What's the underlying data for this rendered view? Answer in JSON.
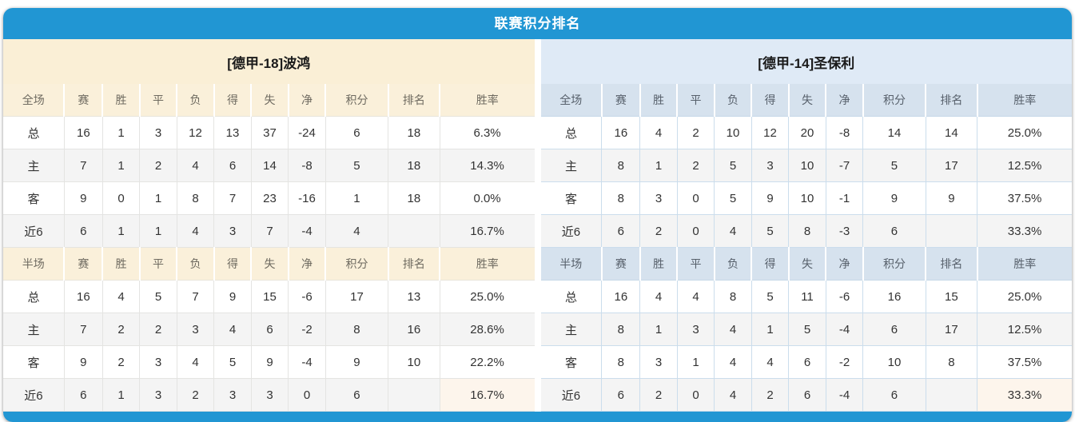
{
  "title": "联赛积分排名",
  "columns": [
    "赛",
    "胜",
    "平",
    "负",
    "得",
    "失",
    "净",
    "积分",
    "排名",
    "胜率"
  ],
  "colors": {
    "accent_blue": "#2196d3",
    "cream_header": "#faf0da",
    "blue_header": "#d6e2ee",
    "points_red": "#ff3300",
    "rank_blue": "#3385db",
    "rate_red": "#ff3000",
    "home_label": "#f25b66",
    "away_label": "#6a66e0"
  },
  "tables": [
    {
      "theme": "cream",
      "team": "[德甲-18]波鸿",
      "sections": [
        {
          "scope": "全场",
          "rows": [
            {
              "label": "总",
              "values": [
                "16",
                "1",
                "3",
                "12",
                "13",
                "37",
                "-24"
              ],
              "points": "6",
              "rank": "18",
              "rate": "6.3%"
            },
            {
              "label": "主",
              "values": [
                "7",
                "1",
                "2",
                "4",
                "6",
                "14",
                "-8"
              ],
              "points": "5",
              "rank": "18",
              "rate": "14.3%"
            },
            {
              "label": "客",
              "values": [
                "9",
                "0",
                "1",
                "8",
                "7",
                "23",
                "-16"
              ],
              "points": "1",
              "rank": "18",
              "rate": "0.0%"
            },
            {
              "label": "近6",
              "values": [
                "6",
                "1",
                "1",
                "4",
                "3",
                "7",
                "-4"
              ],
              "points": "4",
              "rank": "",
              "rate": "16.7%"
            }
          ]
        },
        {
          "scope": "半场",
          "rows": [
            {
              "label": "总",
              "values": [
                "16",
                "4",
                "5",
                "7",
                "9",
                "15",
                "-6"
              ],
              "points": "17",
              "rank": "13",
              "rate": "25.0%"
            },
            {
              "label": "主",
              "values": [
                "7",
                "2",
                "2",
                "3",
                "4",
                "6",
                "-2"
              ],
              "points": "8",
              "rank": "16",
              "rate": "28.6%"
            },
            {
              "label": "客",
              "values": [
                "9",
                "2",
                "3",
                "4",
                "5",
                "9",
                "-4"
              ],
              "points": "9",
              "rank": "10",
              "rate": "22.2%"
            },
            {
              "label": "近6",
              "values": [
                "6",
                "1",
                "3",
                "2",
                "3",
                "3",
                "0"
              ],
              "points": "6",
              "rank": "",
              "rate": "16.7%"
            }
          ]
        }
      ]
    },
    {
      "theme": "blue",
      "team": "[德甲-14]圣保利",
      "sections": [
        {
          "scope": "全场",
          "rows": [
            {
              "label": "总",
              "values": [
                "16",
                "4",
                "2",
                "10",
                "12",
                "20",
                "-8"
              ],
              "points": "14",
              "rank": "14",
              "rate": "25.0%"
            },
            {
              "label": "主",
              "values": [
                "8",
                "1",
                "2",
                "5",
                "3",
                "10",
                "-7"
              ],
              "points": "5",
              "rank": "17",
              "rate": "12.5%"
            },
            {
              "label": "客",
              "values": [
                "8",
                "3",
                "0",
                "5",
                "9",
                "10",
                "-1"
              ],
              "points": "9",
              "rank": "9",
              "rate": "37.5%"
            },
            {
              "label": "近6",
              "values": [
                "6",
                "2",
                "0",
                "4",
                "5",
                "8",
                "-3"
              ],
              "points": "6",
              "rank": "",
              "rate": "33.3%"
            }
          ]
        },
        {
          "scope": "半场",
          "rows": [
            {
              "label": "总",
              "values": [
                "16",
                "4",
                "4",
                "8",
                "5",
                "11",
                "-6"
              ],
              "points": "16",
              "rank": "15",
              "rate": "25.0%"
            },
            {
              "label": "主",
              "values": [
                "8",
                "1",
                "3",
                "4",
                "1",
                "5",
                "-4"
              ],
              "points": "6",
              "rank": "17",
              "rate": "12.5%"
            },
            {
              "label": "客",
              "values": [
                "8",
                "3",
                "1",
                "4",
                "4",
                "6",
                "-2"
              ],
              "points": "10",
              "rank": "8",
              "rate": "37.5%"
            },
            {
              "label": "近6",
              "values": [
                "6",
                "2",
                "0",
                "4",
                "2",
                "6",
                "-4"
              ],
              "points": "6",
              "rank": "",
              "rate": "33.3%"
            }
          ]
        }
      ]
    }
  ],
  "column_widths": [
    "11.5%",
    "7.2%",
    "7%",
    "7%",
    "7%",
    "7%",
    "7%",
    "7%",
    "11.8%",
    "9.7%",
    ""
  ]
}
